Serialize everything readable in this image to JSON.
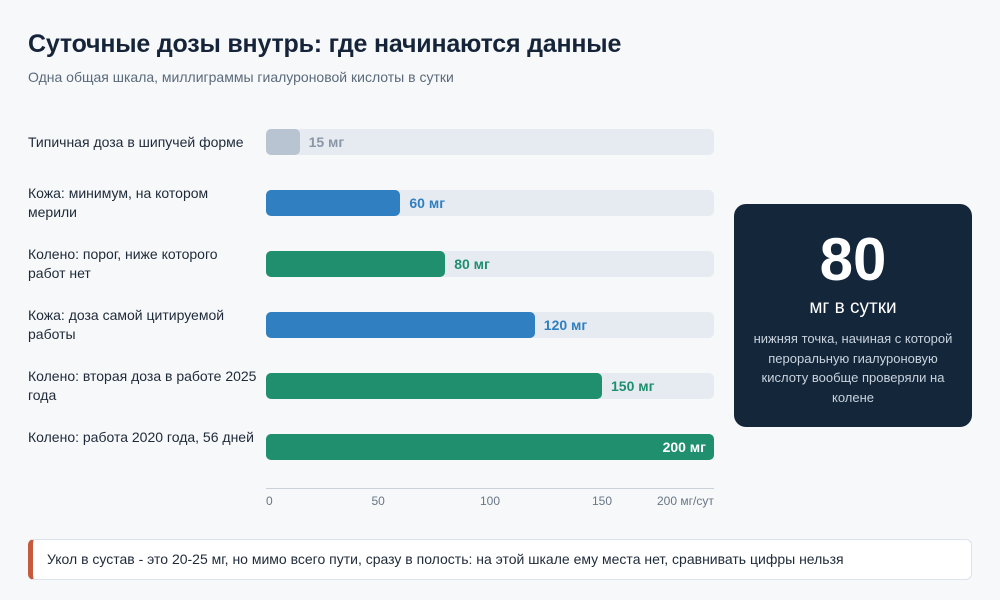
{
  "title": "Суточные дозы внутрь: где начинаются данные",
  "subtitle": "Одна общая шкала, миллиграммы гиалуроновой кислоты в сутки",
  "chart_data": {
    "type": "bar",
    "orientation": "horizontal",
    "title": "Суточные дозы внутрь: где начинаются данные",
    "subtitle": "Одна общая шкала, миллиграммы гиалуроновой кислоты в сутки",
    "categories": [
      "Типичная доза в шипучей форме",
      "Кожа: минимум, на котором мерили",
      "Колено: порог, ниже которого работ нет",
      "Кожа: доза самой цитируемой работы",
      "Колено: вторая доза в работе 2025 года",
      "Колено: работа 2020 года, 56 дней"
    ],
    "values": [
      15,
      60,
      80,
      120,
      150,
      200
    ],
    "value_labels": [
      "15 мг",
      "60 мг",
      "80 мг",
      "120 мг",
      "150 мг",
      "200 мг"
    ],
    "colors": [
      "#b8c4d2",
      "#2f7fc1",
      "#1f8f6e",
      "#2f7fc1",
      "#1f8f6e",
      "#1f8f6e"
    ],
    "label_colors": [
      "#8a96a6",
      "#2f7fc1",
      "#1f8f6e",
      "#2f7fc1",
      "#1f8f6e",
      "#ffffff"
    ],
    "xlim": [
      0,
      200
    ],
    "ticks": [
      0,
      50,
      100,
      150,
      200
    ],
    "tick_labels": [
      "0",
      "50",
      "100",
      "150",
      "200 мг/сут"
    ],
    "grid": false,
    "legend": "none"
  },
  "callout": {
    "value": "80",
    "unit": "мг в сутки",
    "description": "нижняя точка, начиная с которой пероральную гиалуроновую кислоту вообще проверяли на колене"
  },
  "note": "Укол в сустав - это 20-25 мг, но мимо всего пути, сразу в полость: на этой шкале ему места нет, сравнивать цифры нельзя",
  "colors": {
    "accent_skin": "#2f7fc1",
    "accent_knee": "#1f8f6e",
    "neutral": "#b8c4d2",
    "card_bg": "#14263a",
    "note_border": "#c65a3c"
  }
}
